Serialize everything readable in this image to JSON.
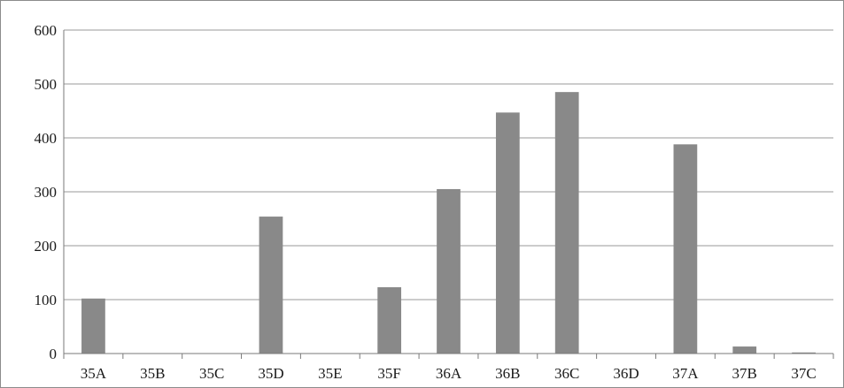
{
  "chart_data": {
    "type": "bar",
    "title": "",
    "xlabel": "",
    "ylabel": "",
    "categories": [
      "35A",
      "35B",
      "35C",
      "35D",
      "35E",
      "35F",
      "36A",
      "36B",
      "36C",
      "36D",
      "37A",
      "37B",
      "37C"
    ],
    "values": [
      102,
      0,
      0,
      254,
      0,
      123,
      305,
      447,
      485,
      0,
      388,
      13,
      2
    ],
    "ylim": [
      0,
      600
    ],
    "yticks": [
      0,
      100,
      200,
      300,
      400,
      500,
      600
    ],
    "grid": true,
    "legend": "none",
    "bar_color": "#898989",
    "grid_color": "#9a9a9a"
  }
}
